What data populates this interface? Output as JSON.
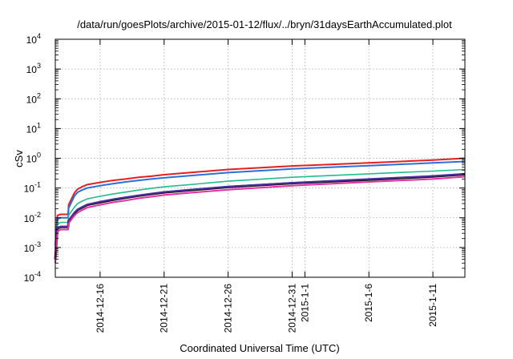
{
  "chart_data": {
    "type": "line",
    "title": "/data/run/goesPlots/archive/2015-01-12/flux/../bryn/31daysEarthAccumulated.plot",
    "xlabel": "Coordinated Universal Time (UTC)",
    "ylabel": "cSv",
    "yscale": "log",
    "ylim": [
      0.0001,
      10000
    ],
    "xlim": [
      "2014-12-12T12:00",
      "2015-01-13T12:00"
    ],
    "grid": true,
    "legend": "none",
    "y_ticks": [
      {
        "base": "10",
        "exp": "4"
      },
      {
        "base": "10",
        "exp": "3"
      },
      {
        "base": "10",
        "exp": "2"
      },
      {
        "base": "10",
        "exp": "1"
      },
      {
        "base": "10",
        "exp": "0"
      },
      {
        "base": "10",
        "exp": "-1"
      },
      {
        "base": "10",
        "exp": "-2"
      },
      {
        "base": "10",
        "exp": "-3"
      },
      {
        "base": "10",
        "exp": "-4"
      }
    ],
    "x_ticks": [
      {
        "label": "2014-12-16",
        "date": "2014-12-16"
      },
      {
        "label": "2014-12-21",
        "date": "2014-12-21"
      },
      {
        "label": "2014-12-26",
        "date": "2014-12-26"
      },
      {
        "label": "2014-12-31",
        "date": "2014-12-31"
      },
      {
        "label": "2015-1-1",
        "date": "2015-01-01"
      },
      {
        "label": "2015-1-6",
        "date": "2015-01-06"
      },
      {
        "label": "2015-1-11",
        "date": "2015-01-11"
      }
    ],
    "x_dates": [
      "2014-12-12T12:00",
      "2014-12-12T16:00",
      "2014-12-12T22:00",
      "2014-12-13T06:00",
      "2014-12-13T12:00",
      "2014-12-13T13:00",
      "2014-12-14T00:00",
      "2014-12-14T06:00",
      "2014-12-14T14:00",
      "2014-12-15T00:00",
      "2014-12-16T00:00",
      "2014-12-17T00:00",
      "2014-12-18T00:00",
      "2014-12-19T00:00",
      "2014-12-20T00:00",
      "2014-12-21T00:00",
      "2014-12-23T00:00",
      "2014-12-26T00:00",
      "2014-12-31T00:00",
      "2015-01-06T00:00",
      "2015-01-11T00:00",
      "2015-01-13T12:00"
    ],
    "series": [
      {
        "color": "#e4201d",
        "width": 2,
        "values": [
          0.0012,
          0.012,
          0.013,
          0.013,
          0.013,
          0.027,
          0.07,
          0.092,
          0.11,
          0.13,
          0.155,
          0.18,
          0.2,
          0.23,
          0.25,
          0.28,
          0.33,
          0.42,
          0.55,
          0.7,
          0.87,
          1.0
        ]
      },
      {
        "color": "#2a6fdb",
        "width": 2,
        "values": [
          0.0009,
          0.009,
          0.01,
          0.01,
          0.01,
          0.021,
          0.055,
          0.072,
          0.085,
          0.1,
          0.12,
          0.14,
          0.16,
          0.18,
          0.2,
          0.22,
          0.26,
          0.33,
          0.44,
          0.56,
          0.7,
          0.78
        ]
      },
      {
        "color": "#22bd88",
        "width": 1.6,
        "values": [
          0.0006,
          0.006,
          0.007,
          0.007,
          0.007,
          0.012,
          0.023,
          0.03,
          0.036,
          0.043,
          0.053,
          0.063,
          0.073,
          0.085,
          0.097,
          0.11,
          0.13,
          0.17,
          0.23,
          0.3,
          0.37,
          0.42
        ]
      },
      {
        "color": "#d8d8d8",
        "width": 1.4,
        "values": [
          0.00045,
          0.0045,
          0.005,
          0.005,
          0.005,
          0.008,
          0.015,
          0.019,
          0.023,
          0.028,
          0.034,
          0.041,
          0.048,
          0.056,
          0.064,
          0.072,
          0.086,
          0.11,
          0.15,
          0.2,
          0.25,
          0.3
        ]
      },
      {
        "color": "#1a1a1a",
        "width": 3,
        "values": [
          0.0004,
          0.0044,
          0.0049,
          0.0049,
          0.0049,
          0.0078,
          0.0145,
          0.0185,
          0.022,
          0.027,
          0.033,
          0.04,
          0.047,
          0.055,
          0.063,
          0.071,
          0.084,
          0.108,
          0.145,
          0.19,
          0.245,
          0.29
        ]
      },
      {
        "color": "#4b2fa0",
        "width": 2,
        "values": [
          0.00042,
          0.0046,
          0.0051,
          0.0051,
          0.0051,
          0.0081,
          0.0152,
          0.0192,
          0.023,
          0.028,
          0.035,
          0.042,
          0.049,
          0.057,
          0.065,
          0.074,
          0.088,
          0.112,
          0.15,
          0.2,
          0.255,
          0.3
        ]
      },
      {
        "color": "#e62fa3",
        "width": 2,
        "values": [
          0.0003,
          0.0035,
          0.004,
          0.004,
          0.004,
          0.0065,
          0.012,
          0.015,
          0.018,
          0.022,
          0.027,
          0.033,
          0.038,
          0.045,
          0.051,
          0.058,
          0.069,
          0.088,
          0.12,
          0.16,
          0.2,
          0.24
        ]
      }
    ]
  }
}
